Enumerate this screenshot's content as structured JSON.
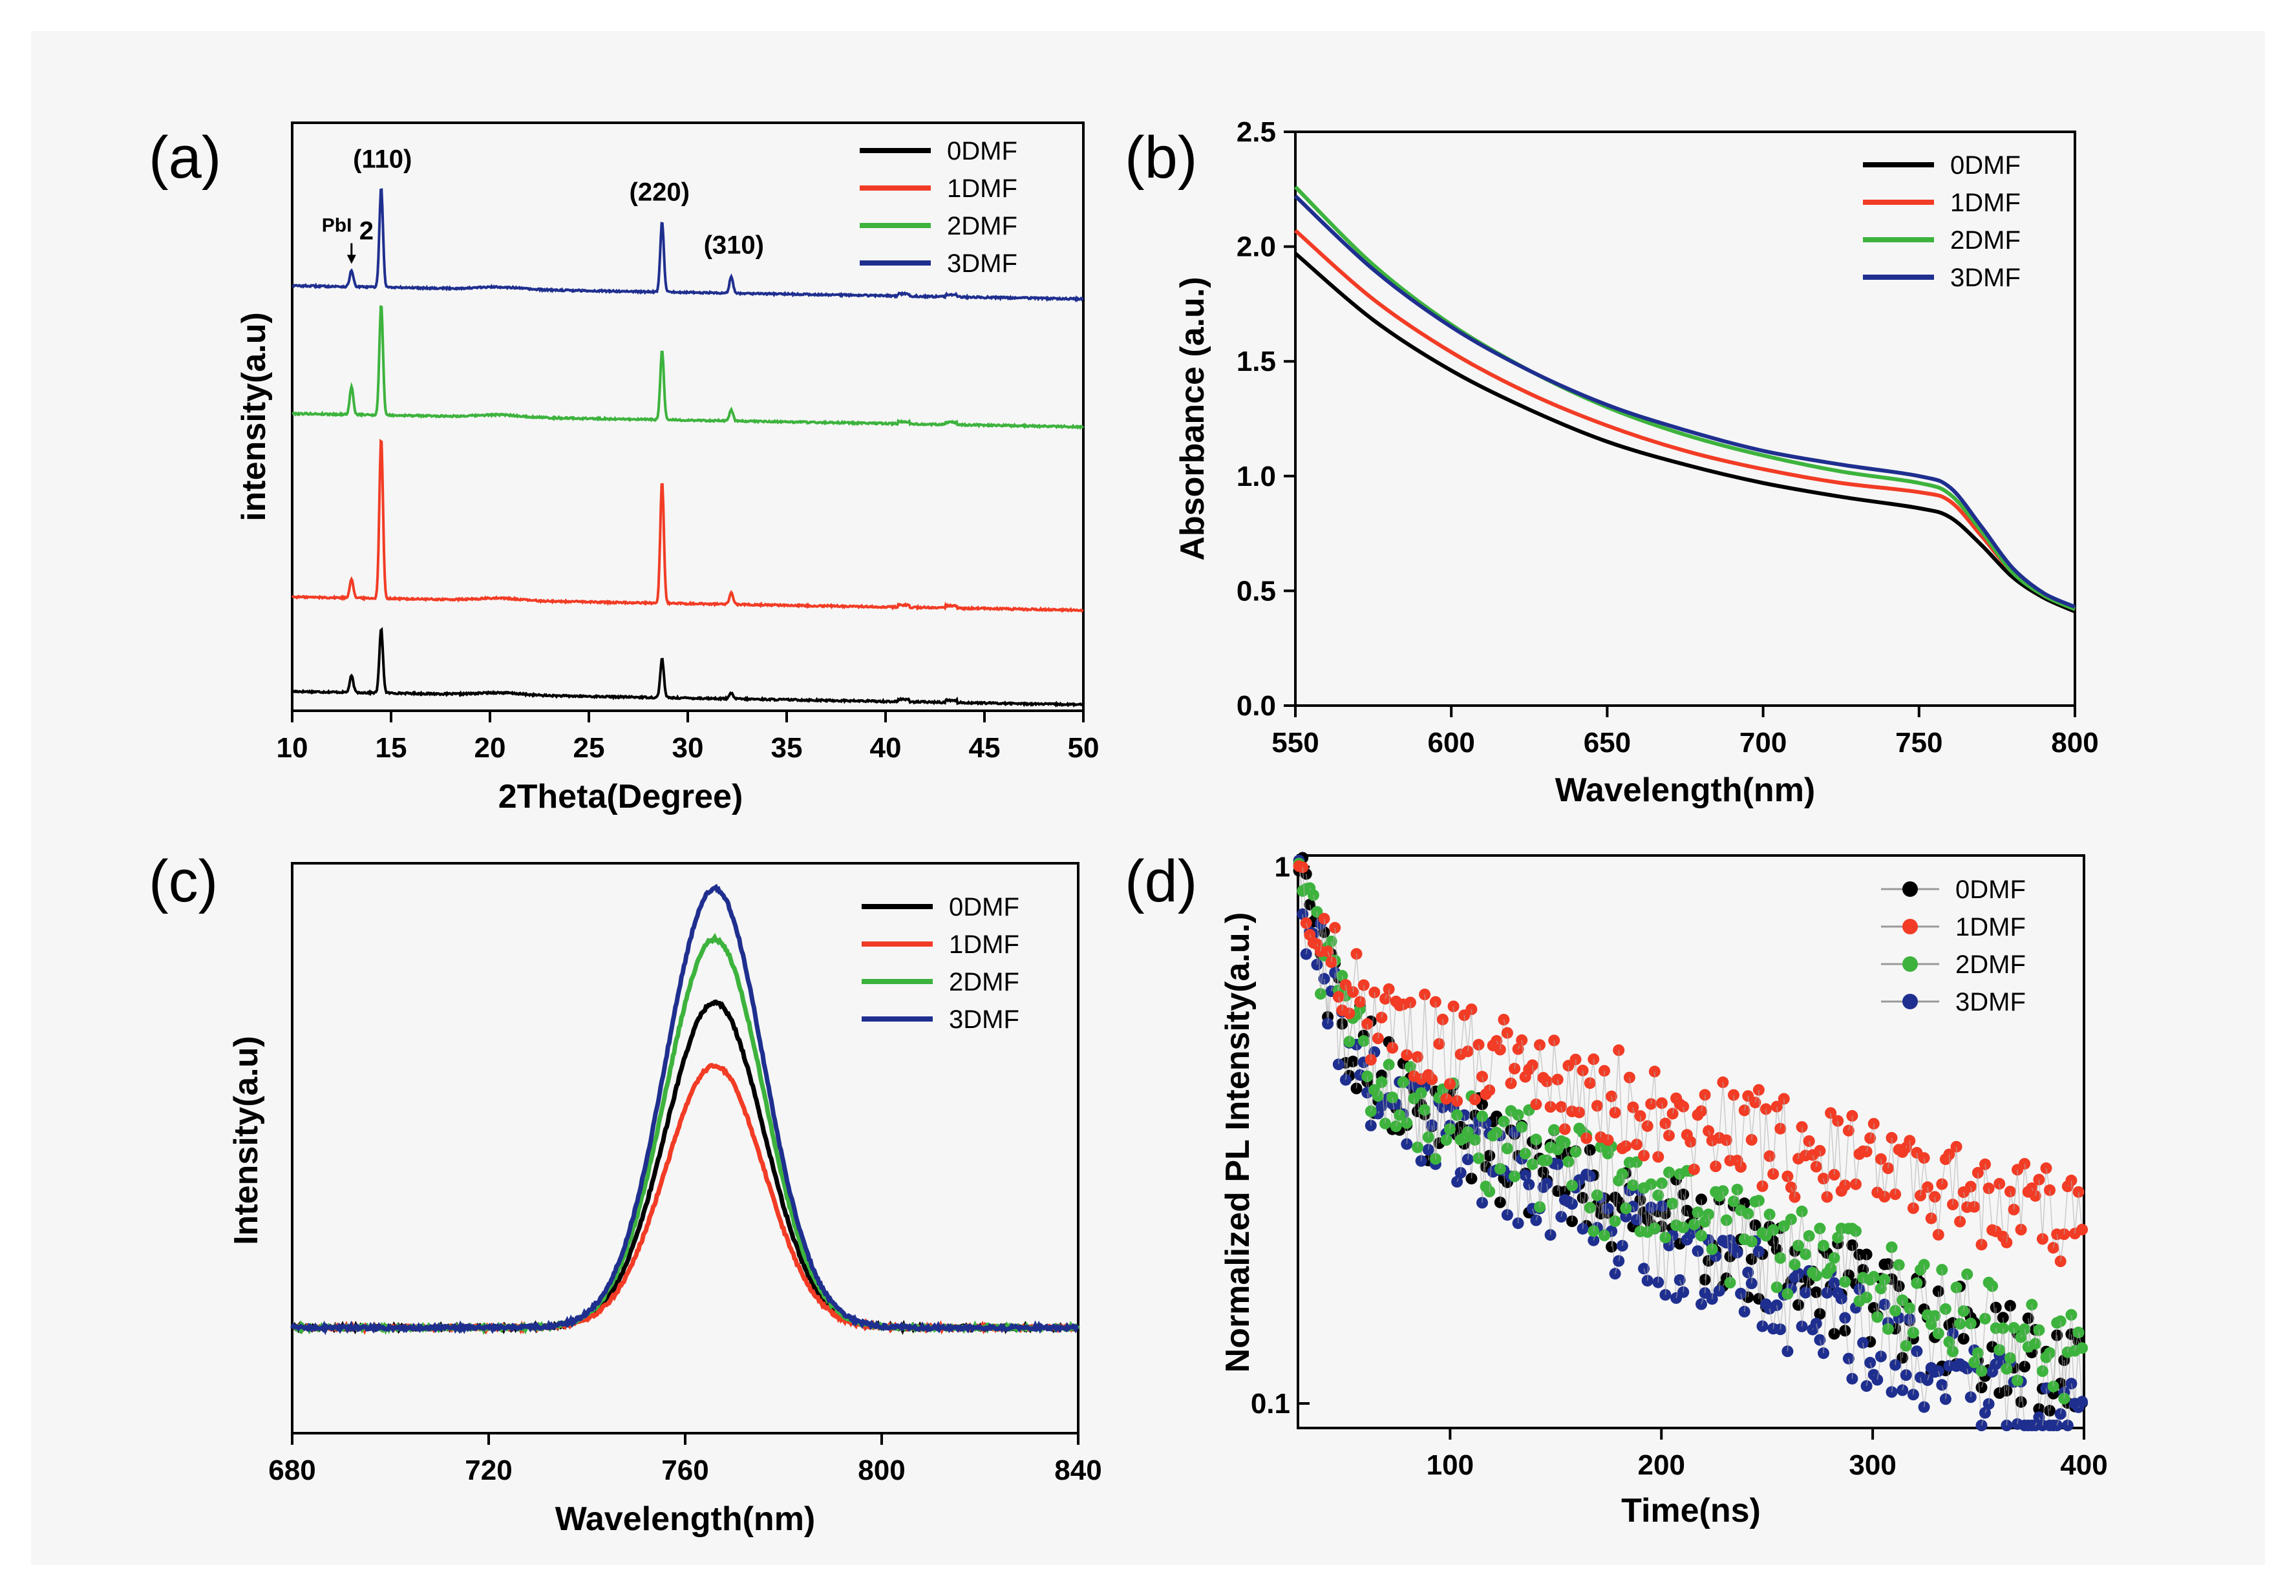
{
  "colors": {
    "0DMF": "#000000",
    "1DMF": "#f23c25",
    "2DMF": "#3db33d",
    "3DMF": "#1f2f8f"
  },
  "chart_data": [
    {
      "id": "a",
      "panel_label": "(a)",
      "type": "line",
      "xlabel": "2Theta(Degree)",
      "ylabel": "intensity(a.u)",
      "xlim": [
        10,
        50
      ],
      "xticks": [
        "10",
        "15",
        "20",
        "25",
        "30",
        "35",
        "40",
        "45",
        "50"
      ],
      "legend": [
        "0DMF",
        "1DMF",
        "2DMF",
        "3DMF"
      ],
      "annotations": {
        "p110": "(110)",
        "p220": "(220)",
        "p310": "(310)",
        "pbi2": "PbI",
        "pbi2_sub": "2"
      },
      "peak_positions": {
        "PbI2": 13.0,
        "(110)": 14.5,
        "(220)": 28.7,
        "(310)": 32.2
      },
      "series": [
        {
          "name": "0DMF",
          "baseline": 0.0,
          "peaks": {
            "13.0": 0.6,
            "14.5": 2.3,
            "28.7": 1.4,
            "32.2": 0.2
          }
        },
        {
          "name": "1DMF",
          "baseline": 3.4,
          "peaks": {
            "13.0": 0.7,
            "14.5": 5.8,
            "28.7": 4.4,
            "32.2": 0.4
          }
        },
        {
          "name": "2DMF",
          "baseline": 10.0,
          "peaks": {
            "13.0": 1.0,
            "14.5": 4.0,
            "28.7": 2.5,
            "32.2": 0.4
          }
        },
        {
          "name": "3DMF",
          "baseline": 14.6,
          "peaks": {
            "13.0": 0.6,
            "14.5": 3.6,
            "28.7": 2.5,
            "32.2": 0.6
          }
        }
      ]
    },
    {
      "id": "b",
      "panel_label": "(b)",
      "type": "line",
      "xlabel": "Wavelength(nm)",
      "ylabel": "Absorbance (a.u.)",
      "xlim": [
        550,
        800
      ],
      "ylim": [
        0.0,
        2.5
      ],
      "xticks": [
        "550",
        "600",
        "650",
        "700",
        "750",
        "800"
      ],
      "yticks": [
        "0.0",
        "0.5",
        "1.0",
        "1.5",
        "2.0",
        "2.5"
      ],
      "legend": [
        "0DMF",
        "1DMF",
        "2DMF",
        "3DMF"
      ],
      "x": [
        550,
        575,
        600,
        625,
        650,
        675,
        700,
        725,
        750,
        760,
        770,
        780,
        790,
        800
      ],
      "series": [
        {
          "name": "0DMF",
          "values": [
            1.97,
            1.68,
            1.46,
            1.29,
            1.15,
            1.05,
            0.97,
            0.91,
            0.86,
            0.82,
            0.7,
            0.56,
            0.47,
            0.41
          ]
        },
        {
          "name": "1DMF",
          "values": [
            2.07,
            1.77,
            1.54,
            1.36,
            1.22,
            1.11,
            1.03,
            0.97,
            0.93,
            0.89,
            0.74,
            0.58,
            0.48,
            0.42
          ]
        },
        {
          "name": "2DMF",
          "values": [
            2.26,
            1.92,
            1.66,
            1.46,
            1.3,
            1.18,
            1.09,
            1.02,
            0.97,
            0.92,
            0.76,
            0.58,
            0.48,
            0.42
          ]
        },
        {
          "name": "3DMF",
          "values": [
            2.22,
            1.9,
            1.65,
            1.46,
            1.31,
            1.2,
            1.11,
            1.05,
            1.0,
            0.95,
            0.78,
            0.6,
            0.49,
            0.43
          ]
        }
      ]
    },
    {
      "id": "c",
      "panel_label": "(c)",
      "type": "line",
      "xlabel": "Wavelength(nm)",
      "ylabel": "Intensity(a.u)",
      "xlim": [
        680,
        840
      ],
      "ylim": [
        -0.25,
        1.1
      ],
      "xticks": [
        "680",
        "720",
        "760",
        "800",
        "840"
      ],
      "legend": [
        "0DMF",
        "1DMF",
        "2DMF",
        "3DMF"
      ],
      "peak_center": 766,
      "peak_sigma": 10,
      "series": [
        {
          "name": "0DMF",
          "peak": 0.77
        },
        {
          "name": "1DMF",
          "peak": 0.62
        },
        {
          "name": "2DMF",
          "peak": 0.92
        },
        {
          "name": "3DMF",
          "peak": 1.04
        }
      ]
    },
    {
      "id": "d",
      "panel_label": "(d)",
      "type": "scatter",
      "xlabel": "Time(ns)",
      "ylabel": "Normalized PL Intensity(a.u.)",
      "xlim": [
        28,
        400
      ],
      "ylim": [
        0.09,
        1.05
      ],
      "yscale": "log",
      "xticks": [
        "100",
        "200",
        "300",
        "400"
      ],
      "yticks": [
        "1",
        "0.1"
      ],
      "legend": [
        "0DMF",
        "1DMF",
        "2DMF",
        "3DMF"
      ],
      "series": [
        {
          "name": "0DMF",
          "decay": {
            "a1": 0.58,
            "t1": 15,
            "a2": 0.42,
            "t2": 280
          }
        },
        {
          "name": "1DMF",
          "decay": {
            "a1": 0.45,
            "t1": 15,
            "a2": 0.55,
            "t2": 400
          }
        },
        {
          "name": "2DMF",
          "decay": {
            "a1": 0.58,
            "t1": 15,
            "a2": 0.42,
            "t2": 300
          }
        },
        {
          "name": "3DMF",
          "decay": {
            "a1": 0.6,
            "t1": 14,
            "a2": 0.4,
            "t2": 250
          }
        }
      ]
    }
  ]
}
